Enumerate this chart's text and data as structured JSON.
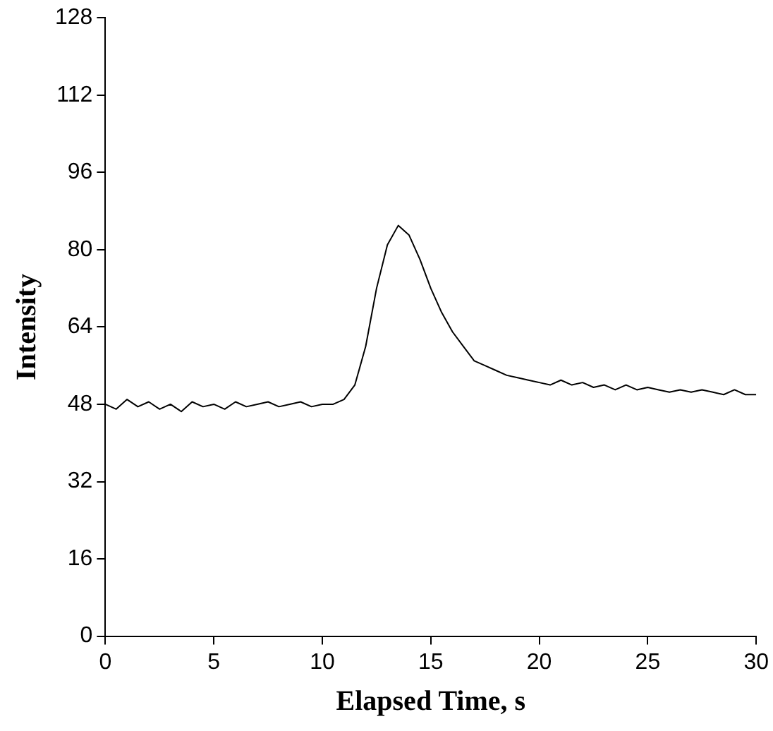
{
  "chart_data": {
    "type": "line",
    "xlabel": "Elapsed Time, s",
    "ylabel": "Intensity",
    "xlim": [
      0,
      30
    ],
    "xticks": [
      0,
      5,
      10,
      15,
      20,
      25,
      30
    ],
    "ylim": [
      0,
      128
    ],
    "yticks": [
      0,
      16,
      32,
      48,
      64,
      80,
      96,
      112,
      128
    ],
    "grid": false,
    "legend": false,
    "marker": "none",
    "line_style": "solid",
    "series": [
      {
        "color": "#000000",
        "x": [
          0,
          0.5,
          1,
          1.5,
          2,
          2.5,
          3,
          3.5,
          4,
          4.5,
          5,
          5.5,
          6,
          6.5,
          7,
          7.5,
          8,
          8.5,
          9,
          9.5,
          10,
          10.5,
          11,
          11.5,
          12,
          12.5,
          13,
          13.5,
          14,
          14.5,
          15,
          15.5,
          16,
          16.5,
          17,
          17.5,
          18,
          18.5,
          19,
          19.5,
          20,
          20.5,
          21,
          21.5,
          22,
          22.5,
          23,
          23.5,
          24,
          24.5,
          25,
          25.5,
          26,
          26.5,
          27,
          27.5,
          28,
          28.5,
          29,
          29.5,
          30
        ],
        "values": [
          48,
          47,
          49,
          47.5,
          48.5,
          47,
          48,
          46.5,
          48.5,
          47.5,
          48,
          47,
          48.5,
          47.5,
          48,
          48.5,
          47.5,
          48,
          48.5,
          47.5,
          48,
          48,
          49,
          52,
          60,
          72,
          81,
          85,
          83,
          78,
          72,
          67,
          63,
          60,
          57,
          56,
          55,
          54,
          53.5,
          53,
          52.5,
          52,
          53,
          52,
          52.5,
          51.5,
          52,
          51,
          52,
          51,
          51.5,
          51,
          50.5,
          51,
          50.5,
          51,
          50.5,
          50,
          51,
          50,
          50
        ]
      }
    ]
  }
}
